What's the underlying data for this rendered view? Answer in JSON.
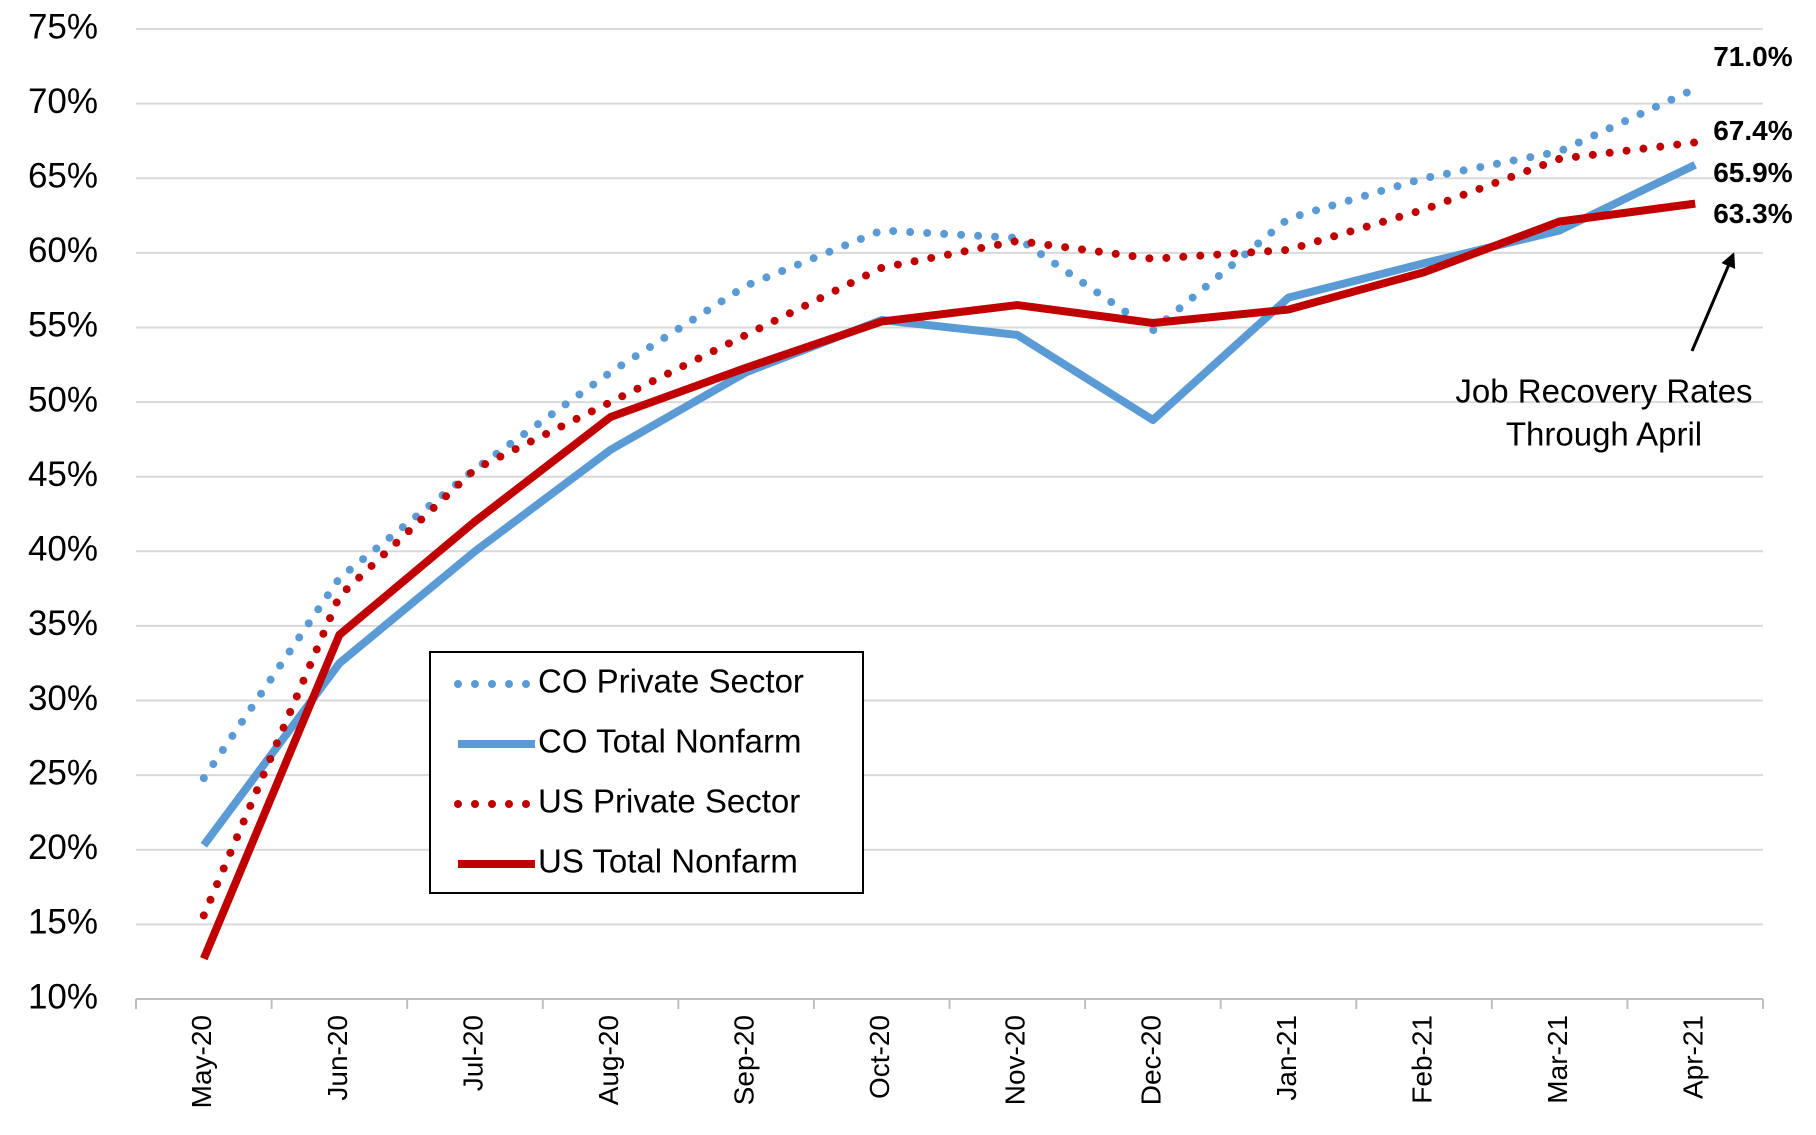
{
  "chart_data": {
    "type": "line",
    "categories": [
      "May-20",
      "Jun-20",
      "Jul-20",
      "Aug-20",
      "Sep-20",
      "Oct-20",
      "Nov-20",
      "Dec-20",
      "Jan-21",
      "Feb-21",
      "Mar-21",
      "Apr-21"
    ],
    "series": [
      {
        "name": "CO Private Sector",
        "color": "#5b9bd5",
        "style": "dotted",
        "values": [
          24.8,
          38.2,
          45.5,
          52.0,
          57.8,
          61.5,
          61.0,
          54.8,
          62.3,
          65.0,
          66.8,
          71.0
        ],
        "value_labels": [
          null,
          null,
          null,
          null,
          null,
          null,
          null,
          null,
          null,
          null,
          null,
          "71.0%"
        ]
      },
      {
        "name": "CO Total Nonfarm",
        "color": "#5b9bd5",
        "style": "solid",
        "values": [
          20.3,
          32.5,
          40.0,
          46.8,
          52.0,
          55.5,
          54.5,
          48.8,
          57.0,
          59.3,
          61.5,
          65.9
        ],
        "value_labels": [
          null,
          null,
          null,
          null,
          null,
          null,
          null,
          null,
          null,
          null,
          null,
          "65.9%"
        ]
      },
      {
        "name": "US Private Sector",
        "color": "#c00000",
        "style": "dotted",
        "values": [
          15.6,
          37.0,
          45.5,
          50.0,
          54.5,
          59.0,
          60.8,
          59.6,
          60.2,
          62.9,
          66.3,
          67.4
        ],
        "value_labels": [
          null,
          null,
          null,
          null,
          null,
          null,
          null,
          null,
          null,
          null,
          null,
          "67.4%"
        ]
      },
      {
        "name": "US Total Nonfarm",
        "color": "#c00000",
        "style": "solid",
        "values": [
          12.7,
          34.4,
          42.0,
          49.0,
          52.3,
          55.4,
          56.5,
          55.3,
          56.2,
          58.7,
          62.1,
          63.3
        ],
        "value_labels": [
          null,
          null,
          null,
          null,
          null,
          null,
          null,
          null,
          null,
          null,
          null,
          "63.3%"
        ]
      }
    ],
    "ylim": [
      10,
      75
    ],
    "yticks": [
      {
        "value": 10,
        "label": "10%"
      },
      {
        "value": 15,
        "label": "15%"
      },
      {
        "value": 20,
        "label": "20%"
      },
      {
        "value": 25,
        "label": "25%"
      },
      {
        "value": 30,
        "label": "30%"
      },
      {
        "value": 35,
        "label": "35%"
      },
      {
        "value": 40,
        "label": "40%"
      },
      {
        "value": 45,
        "label": "45%"
      },
      {
        "value": 50,
        "label": "50%"
      },
      {
        "value": 55,
        "label": "55%"
      },
      {
        "value": 60,
        "label": "60%"
      },
      {
        "value": 65,
        "label": "65%"
      },
      {
        "value": 70,
        "label": "70%"
      },
      {
        "value": 75,
        "label": "75%"
      }
    ],
    "grid": true,
    "legend": "lower-left",
    "annotation": [
      "Job Recovery Rates",
      "Through April"
    ]
  }
}
